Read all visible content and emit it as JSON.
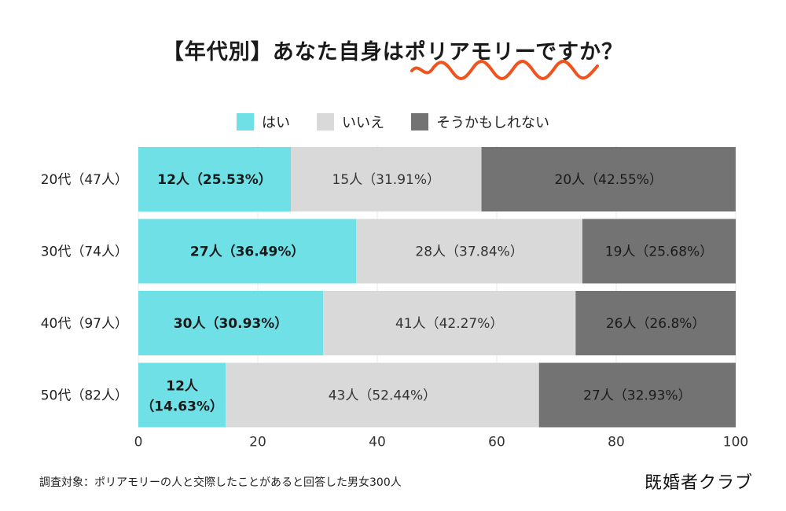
{
  "title": "【年代別】あなた自身はポリアモリーですか？",
  "legend": [
    {
      "label": "はい",
      "color": "#6ee0e6"
    },
    {
      "label": "いいえ",
      "color": "#d9d9d9"
    },
    {
      "label": "そうかもしれない",
      "color": "#737373"
    }
  ],
  "chart_data": {
    "type": "bar",
    "orientation": "horizontal",
    "stacked": true,
    "categories": [
      "20代（47人）",
      "30代（74人）",
      "40代（97人）",
      "50代（82人）"
    ],
    "series": [
      {
        "name": "はい",
        "values": [
          25.53,
          36.49,
          30.93,
          14.63
        ],
        "labels": [
          "12人（25.53%）",
          "27人（36.49%）",
          "30人（30.93%）",
          "12人\n（14.63%）"
        ]
      },
      {
        "name": "いいえ",
        "values": [
          31.91,
          37.84,
          42.27,
          52.44
        ],
        "labels": [
          "15人（31.91%）",
          "28人（37.84%）",
          "41人（42.27%）",
          "43人（52.44%）"
        ]
      },
      {
        "name": "そうかもしれない",
        "values": [
          42.55,
          25.68,
          26.8,
          32.93
        ],
        "labels": [
          "20人（42.55%）",
          "19人（25.68%）",
          "26人（26.8%）",
          "27人（32.93%）"
        ]
      }
    ],
    "xlim": [
      0,
      100
    ],
    "xticks": [
      0,
      20,
      40,
      60,
      80,
      100
    ],
    "grid": true,
    "legend_position": "top-center"
  },
  "footnote": "調査対象：ポリアモリーの人と交際したことがあると回答した男女300人",
  "brand": "既婚者クラブ"
}
